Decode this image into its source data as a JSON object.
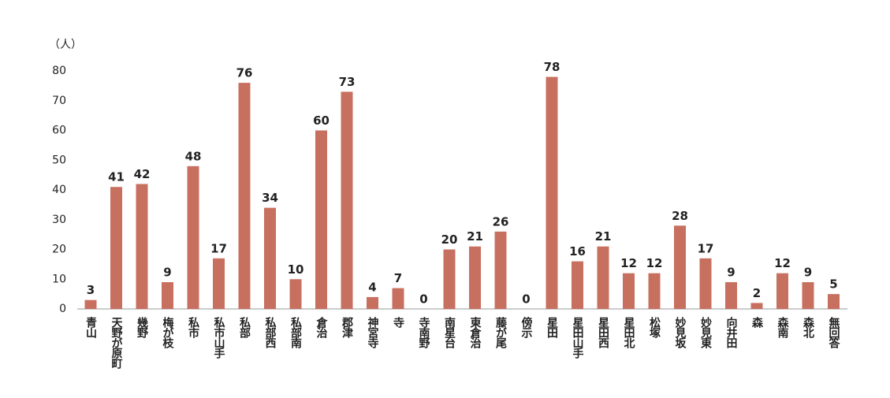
{
  "chart_data": {
    "type": "bar",
    "ylabel": "（人）",
    "categories": [
      "青山",
      "天野が原町",
      "幾野",
      "梅が枝",
      "私市",
      "私市山手",
      "私部",
      "私部西",
      "私部南",
      "倉治",
      "郡津",
      "神宮寺",
      "寺",
      "寺南野",
      "南星台",
      "東倉治",
      "藤が尾",
      "傍示",
      "星田",
      "星田山手",
      "星田西",
      "星田北",
      "松塚",
      "妙見坂",
      "妙見東",
      "向井田",
      "森",
      "森南",
      "森北",
      "無回答"
    ],
    "values": [
      3,
      41,
      42,
      9,
      48,
      17,
      76,
      34,
      10,
      60,
      73,
      4,
      7,
      0,
      20,
      21,
      26,
      0,
      78,
      16,
      21,
      12,
      12,
      28,
      17,
      9,
      2,
      12,
      9,
      5
    ],
    "color": "#c8705f",
    "ylim": [
      0,
      80
    ],
    "yticks": [
      0,
      10,
      20,
      30,
      40,
      50,
      60,
      70,
      80
    ],
    "grid": false
  }
}
